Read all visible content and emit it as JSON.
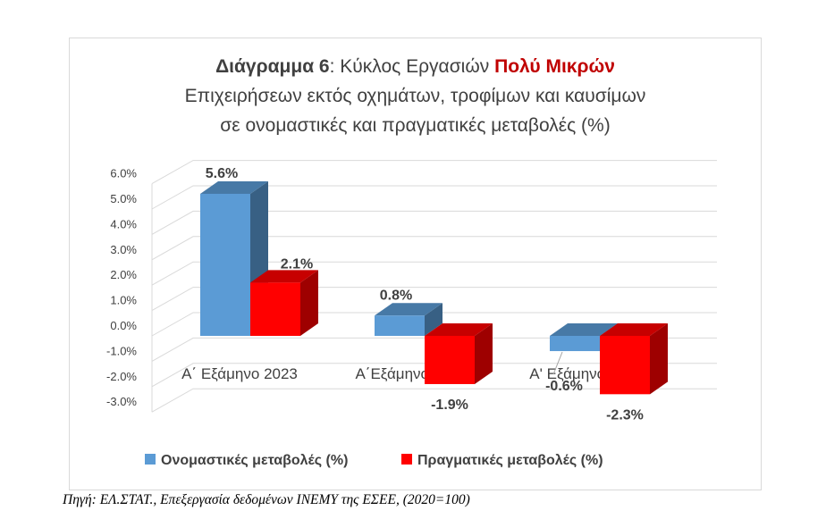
{
  "title": {
    "bold_part": "Διάγραμμα 6",
    "normal_part": ": Κύκλος Εργασιών ",
    "red_part": "Πολύ Μικρών",
    "line2": "Επιχειρήσεων εκτός οχημάτων, τροφίμων και καυσίμων",
    "line3": "σε ονομαστικές και πραγματικές μεταβολές (%)"
  },
  "source": "Πηγή: ΕΛ.ΣΤΑΤ., Επεξεργασία δεδομένων ΙΝΕΜΥ της ΕΣΕΕ, (2020=100)",
  "chart_data": {
    "type": "bar",
    "categories": [
      "Α΄ Εξάμηνο 2023",
      "Α΄Εξάμηνο 2024",
      "Α' Εξάμηνο 2025"
    ],
    "series": [
      {
        "name": "Ονομαστικές μεταβολές (%)",
        "values": [
          5.6,
          0.8,
          -0.6
        ],
        "labels": [
          "5.6%",
          "0.8%",
          "-0.6%"
        ],
        "color": "#5b9bd5"
      },
      {
        "name": "Πραγματικές μεταβολές (%)",
        "values": [
          2.1,
          -1.9,
          -2.3
        ],
        "labels": [
          "2.1%",
          "-1.9%",
          "-2.3%"
        ],
        "color": "#ff0000"
      }
    ],
    "y_ticks": [
      "6.0%",
      "5.0%",
      "4.0%",
      "3.0%",
      "2.0%",
      "1.0%",
      "0.0%",
      "-1.0%",
      "-2.0%",
      "-3.0%"
    ],
    "ylim": [
      -3.0,
      6.0
    ],
    "grid": true,
    "legend_position": "bottom",
    "style": "3d-clustered-column"
  }
}
